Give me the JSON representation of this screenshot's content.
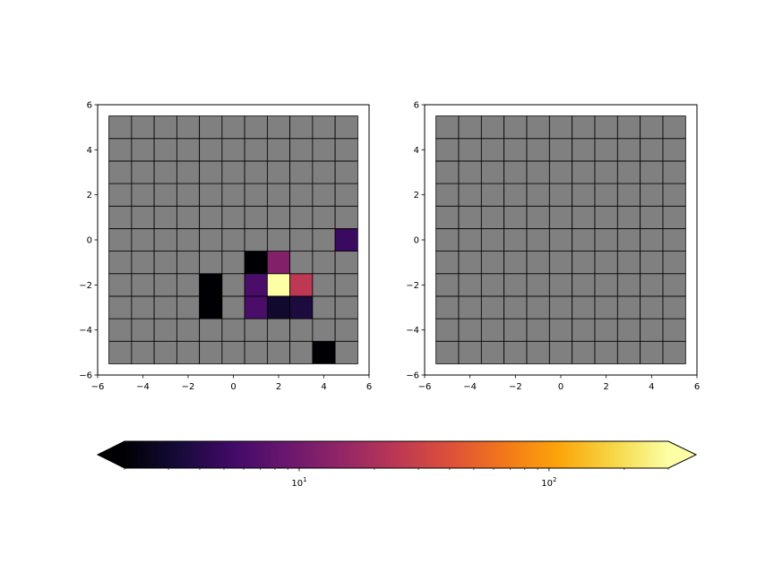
{
  "chart_data": [
    {
      "type": "heatmap",
      "panel": "left",
      "xlim": [
        -6,
        6
      ],
      "ylim": [
        -6,
        6
      ],
      "xticks": [
        -6,
        -4,
        -2,
        0,
        2,
        4,
        6
      ],
      "yticks": [
        -6,
        -4,
        -2,
        0,
        2,
        4,
        6
      ],
      "xtick_labels": [
        "−6",
        "−4",
        "−2",
        "0",
        "2",
        "4",
        "6"
      ],
      "ytick_labels": [
        "−6",
        "−4",
        "−2",
        "0",
        "2",
        "4",
        "6"
      ],
      "cell_x_edges": [
        -5.5,
        -4.5,
        -3.5,
        -2.5,
        -1.5,
        -0.5,
        0.5,
        1.5,
        2.5,
        3.5,
        4.5,
        5.5
      ],
      "cell_y_edges": [
        -5.5,
        -4.5,
        -3.5,
        -2.5,
        -1.5,
        -0.5,
        0.5,
        1.5,
        2.5,
        3.5,
        4.5,
        5.5
      ],
      "masked_color": "#808080",
      "cells": [
        {
          "x": 5,
          "y": 0,
          "value": 5
        },
        {
          "x": 1,
          "y": -1,
          "value": 2
        },
        {
          "x": 2,
          "y": -1,
          "value": 12
        },
        {
          "x": -1,
          "y": -2,
          "value": 2
        },
        {
          "x": 1,
          "y": -2,
          "value": 6
        },
        {
          "x": 2,
          "y": -2,
          "value": 300
        },
        {
          "x": 3,
          "y": -2,
          "value": 25
        },
        {
          "x": -1,
          "y": -3,
          "value": 2
        },
        {
          "x": 1,
          "y": -3,
          "value": 6
        },
        {
          "x": 2,
          "y": -3,
          "value": 3
        },
        {
          "x": 3,
          "y": -3,
          "value": 3.5
        },
        {
          "x": 4,
          "y": -5,
          "value": 2
        }
      ]
    },
    {
      "type": "heatmap",
      "panel": "right",
      "xlim": [
        -6,
        6
      ],
      "ylim": [
        -6,
        6
      ],
      "xticks": [
        -6,
        -4,
        -2,
        0,
        2,
        4,
        6
      ],
      "yticks": [
        -6,
        -4,
        -2,
        0,
        2,
        4,
        6
      ],
      "xtick_labels": [
        "−6",
        "−4",
        "−2",
        "0",
        "2",
        "4",
        "6"
      ],
      "ytick_labels": [
        "−6",
        "−4",
        "−2",
        "0",
        "2",
        "4",
        "6"
      ],
      "cell_x_edges": [
        -5.5,
        -4.5,
        -3.5,
        -2.5,
        -1.5,
        -0.5,
        0.5,
        1.5,
        2.5,
        3.5,
        4.5,
        5.5
      ],
      "cell_y_edges": [
        -5.5,
        -4.5,
        -3.5,
        -2.5,
        -1.5,
        -0.5,
        0.5,
        1.5,
        2.5,
        3.5,
        4.5,
        5.5
      ],
      "masked_color": "#808080",
      "cells": []
    }
  ],
  "colorbar": {
    "colormap": "inferno",
    "scale": "log",
    "vmin": 2,
    "vmax": 300,
    "extend": "both",
    "orientation": "horizontal",
    "major_ticks": [
      10,
      100
    ],
    "major_tick_labels": [
      {
        "base": "10",
        "exp": "1"
      },
      {
        "base": "10",
        "exp": "2"
      }
    ],
    "minor_ticks": [
      2,
      3,
      4,
      5,
      6,
      7,
      8,
      9,
      20,
      30,
      40,
      50,
      60,
      70,
      80,
      90,
      200,
      300
    ]
  }
}
